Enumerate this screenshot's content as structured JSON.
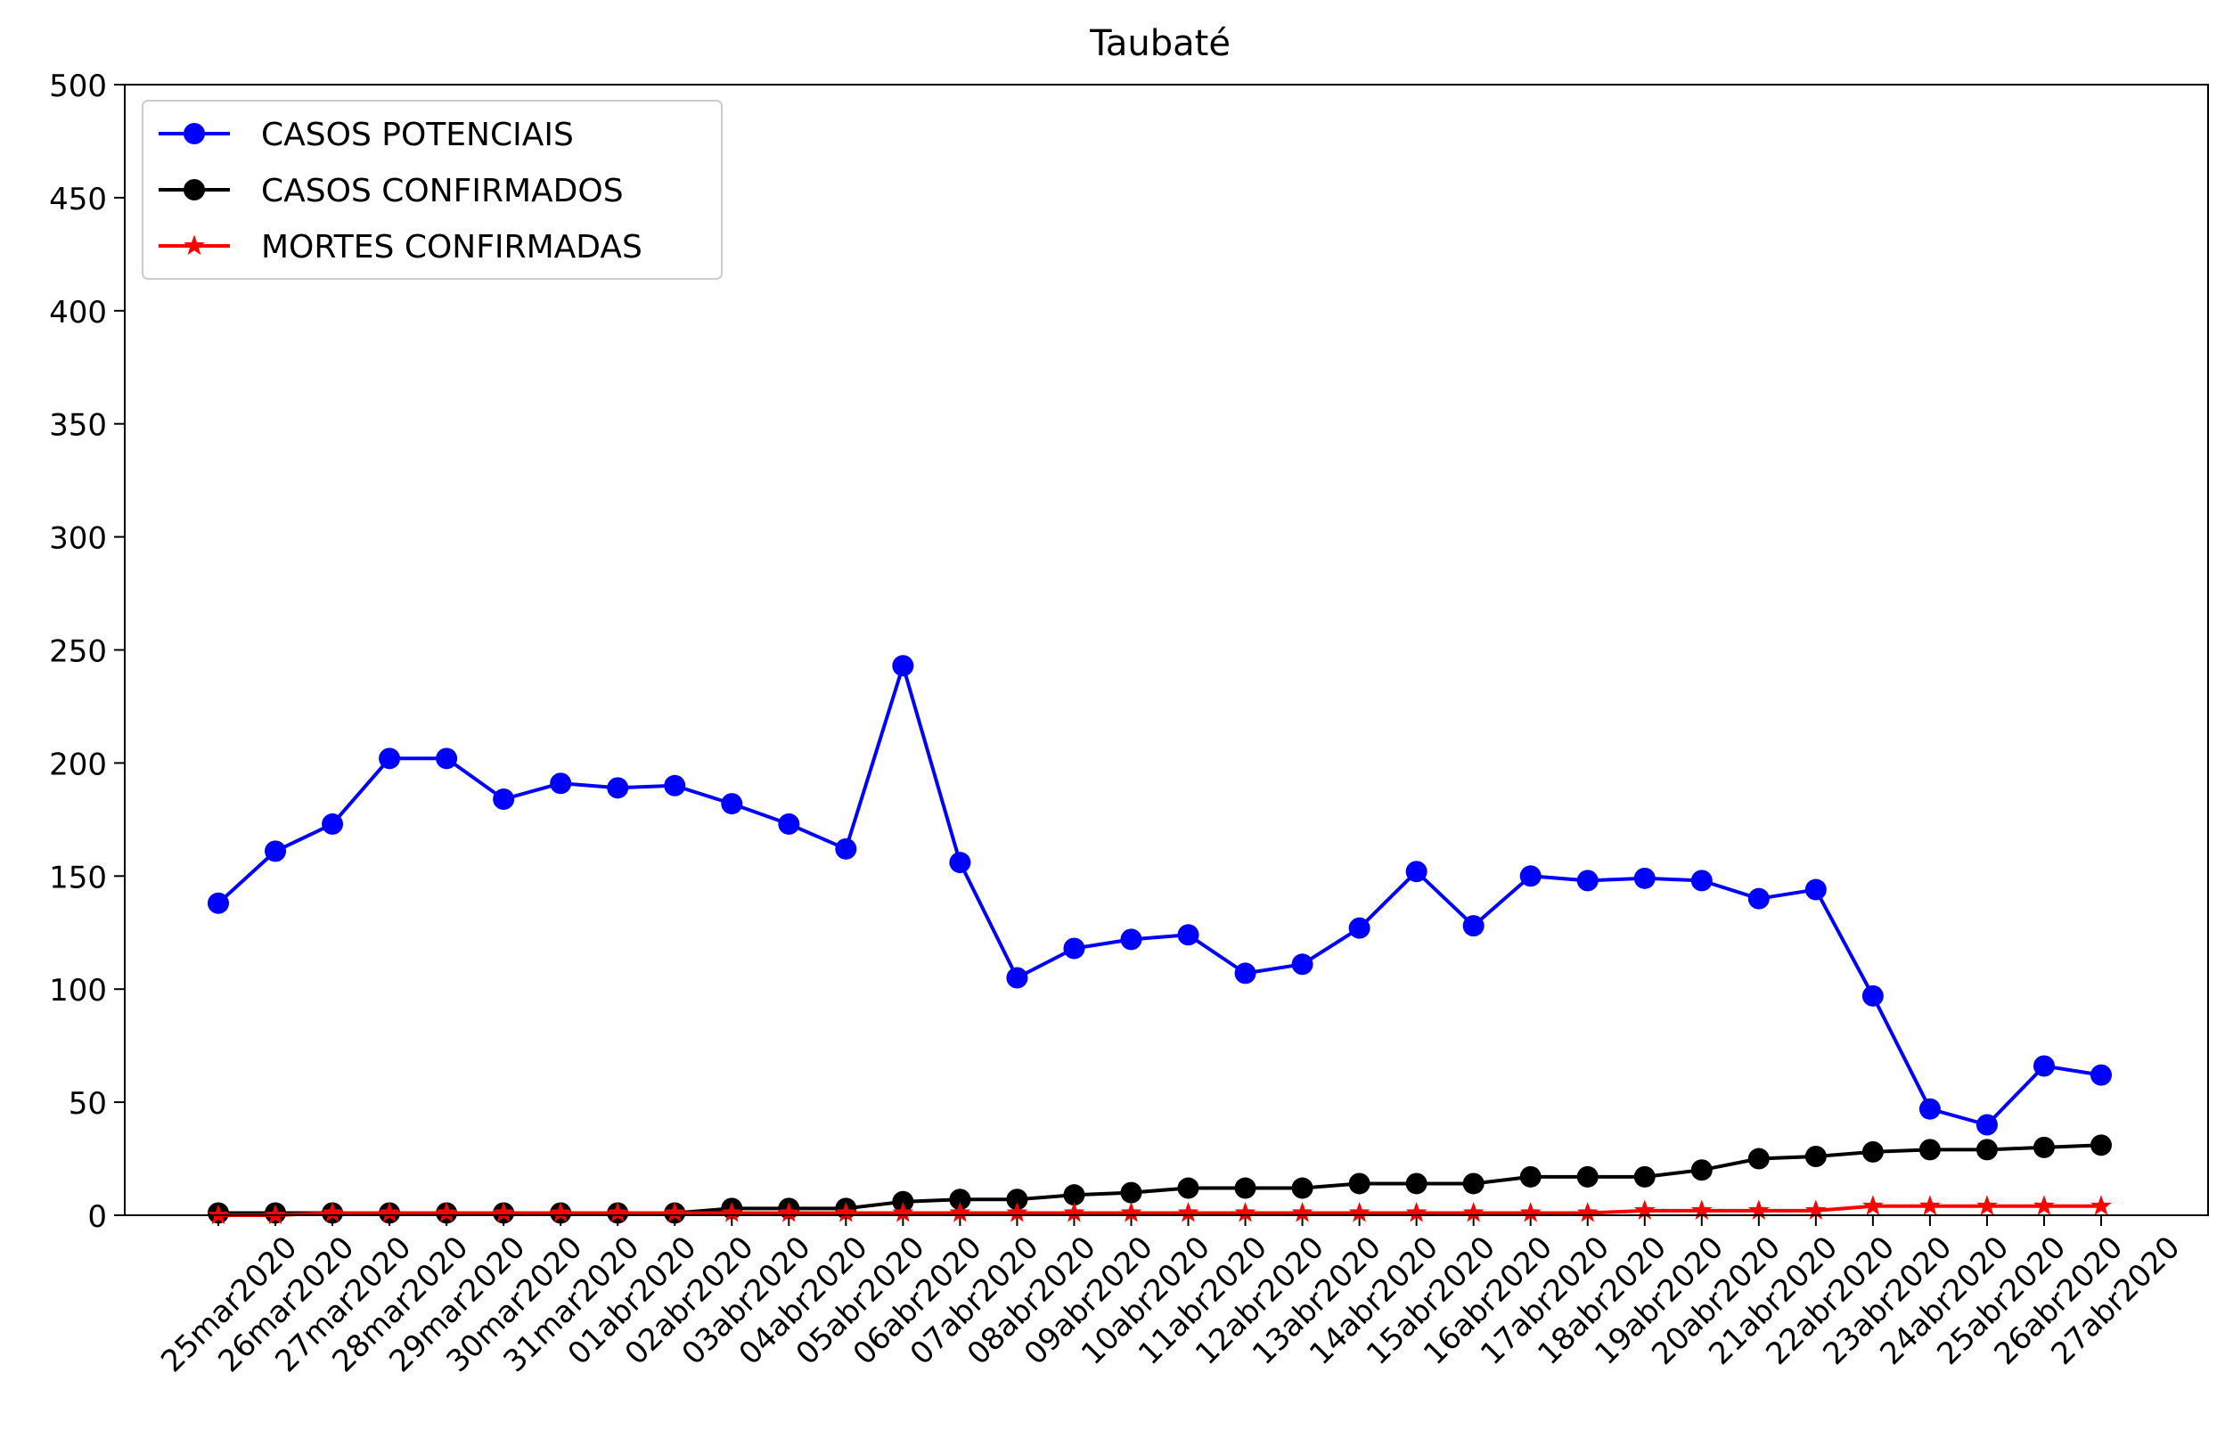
{
  "chart_data": {
    "type": "line",
    "title": "Taubaté",
    "xlabel": "",
    "ylabel": "",
    "ylim": [
      0,
      500
    ],
    "yticks": [
      0,
      50,
      100,
      150,
      200,
      250,
      300,
      350,
      400,
      450,
      500
    ],
    "grid": false,
    "legend_position": "top-left",
    "categories": [
      "25mar2020",
      "26mar2020",
      "27mar2020",
      "28mar2020",
      "29mar2020",
      "30mar2020",
      "31mar2020",
      "01abr2020",
      "02abr2020",
      "03abr2020",
      "04abr2020",
      "05abr2020",
      "06abr2020",
      "07abr2020",
      "08abr2020",
      "09abr2020",
      "10abr2020",
      "11abr2020",
      "12abr2020",
      "13abr2020",
      "14abr2020",
      "15abr2020",
      "16abr2020",
      "17abr2020",
      "18abr2020",
      "19abr2020",
      "20abr2020",
      "21abr2020",
      "22abr2020",
      "23abr2020",
      "24abr2020",
      "25abr2020",
      "26abr2020",
      "27abr2020"
    ],
    "series": [
      {
        "name": "CASOS POTENCIAIS",
        "color": "#0000ff",
        "marker": "circle",
        "values": [
          138,
          161,
          173,
          202,
          202,
          184,
          191,
          189,
          190,
          182,
          173,
          162,
          243,
          156,
          105,
          118,
          122,
          124,
          107,
          111,
          127,
          152,
          128,
          150,
          148,
          149,
          148,
          140,
          144,
          97,
          47,
          40,
          66,
          62
        ]
      },
      {
        "name": "CASOS CONFIRMADOS",
        "color": "#000000",
        "marker": "circle",
        "values": [
          1,
          1,
          1,
          1,
          1,
          1,
          1,
          1,
          1,
          3,
          3,
          3,
          6,
          7,
          7,
          9,
          10,
          12,
          12,
          12,
          14,
          14,
          14,
          17,
          17,
          17,
          20,
          25,
          26,
          28,
          29,
          29,
          30,
          31
        ]
      },
      {
        "name": "MORTES CONFIRMADAS",
        "color": "#ff0000",
        "marker": "star",
        "values": [
          0,
          0,
          1,
          1,
          1,
          1,
          1,
          1,
          1,
          1,
          1,
          1,
          1,
          1,
          1,
          1,
          1,
          1,
          1,
          1,
          1,
          1,
          1,
          1,
          1,
          2,
          2,
          2,
          2,
          4,
          4,
          4,
          4,
          4
        ]
      }
    ]
  }
}
